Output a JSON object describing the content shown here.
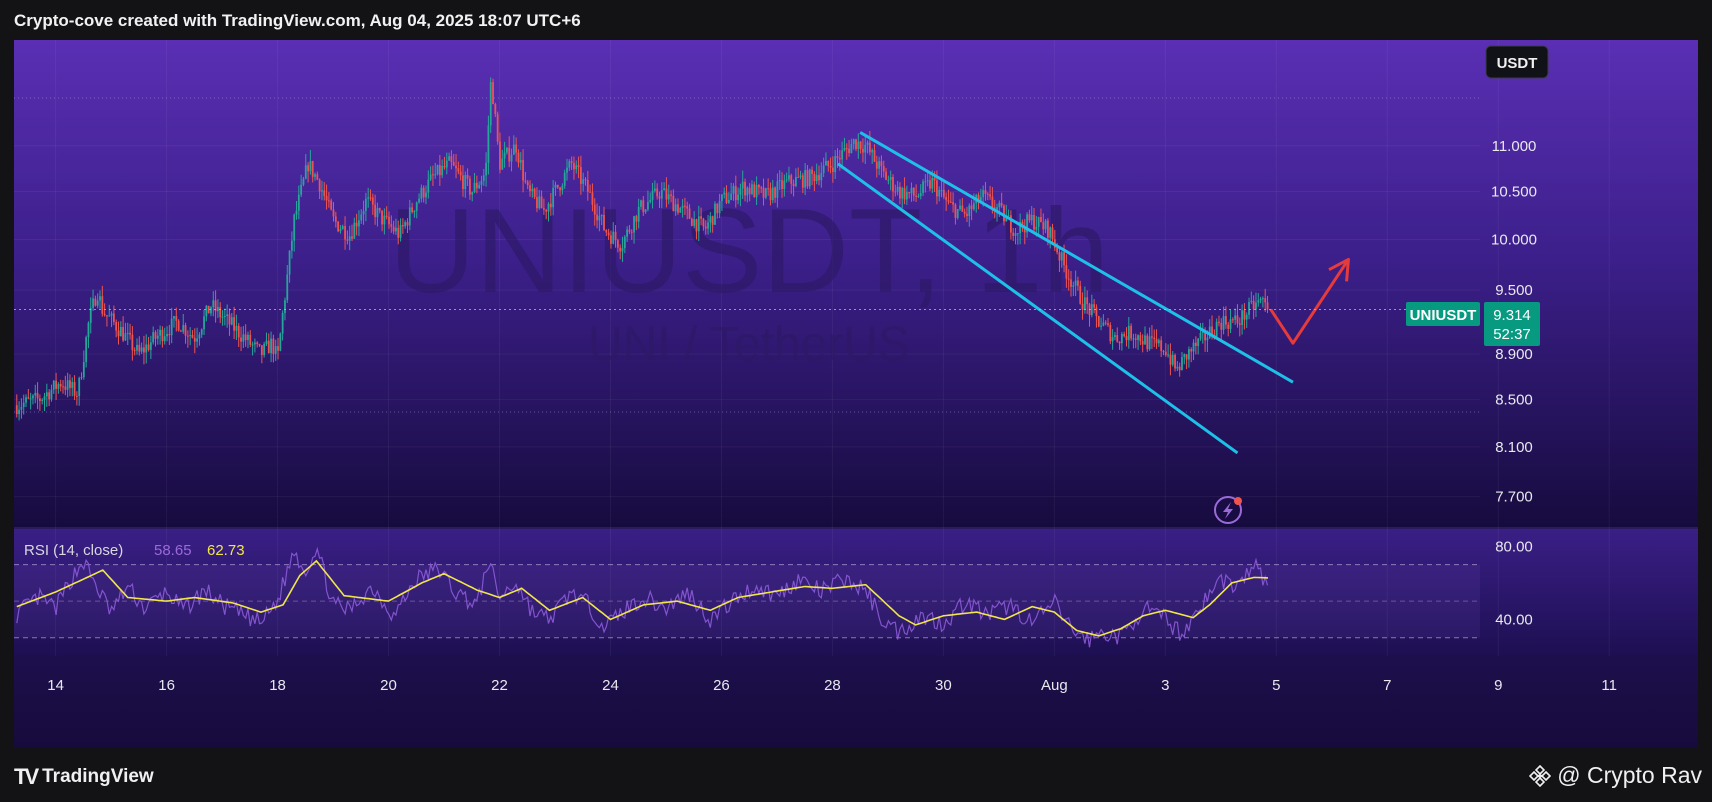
{
  "header": {
    "title": "Crypto-cove created with TradingView.com, Aug 04, 2025 18:07 UTC+6"
  },
  "footer": {
    "brand_logo": "TV",
    "brand_name": "TradingView",
    "watermark_handle": "@ Crypto Rav"
  },
  "colors": {
    "bg_top": "#5a2fb4",
    "bg_bottom": "#140a3a",
    "up_candle": "#26a69a",
    "down_candle": "#ef5350",
    "trendline": "#1ec0e8",
    "arrow": "#e53b3b",
    "rsi_line": "#8c5ad8",
    "rsi_ma": "#f0e64a",
    "price_badge": "#089981"
  },
  "chart_data": {
    "type": "candlestick",
    "symbol_watermark": "UNIUSDT, 1h",
    "subtitle_watermark": "UNI / TetherUS",
    "currency_label": "USDT",
    "y_ticks": [
      "11.000",
      "10.500",
      "10.000",
      "9.500",
      "8.900",
      "8.500",
      "8.100",
      "7.700"
    ],
    "y_scale": "log",
    "ylim": [
      7.55,
      12.1
    ],
    "x_ticks": [
      "14",
      "16",
      "18",
      "20",
      "22",
      "24",
      "26",
      "28",
      "30",
      "Aug",
      "3",
      "5",
      "7",
      "9",
      "11"
    ],
    "x_tick_days": [
      14,
      16,
      18,
      20,
      22,
      24,
      26,
      28,
      30,
      32,
      34,
      36,
      38,
      40,
      42
    ],
    "xlim_days": [
      13.25,
      43.6
    ],
    "last_price": {
      "label": "UNIUSDT",
      "value": "9.314",
      "countdown": "52:37"
    },
    "price_path": [
      [
        13.3,
        8.45
      ],
      [
        13.7,
        8.5
      ],
      [
        14.1,
        8.65
      ],
      [
        14.4,
        8.55
      ],
      [
        14.6,
        9.2
      ],
      [
        14.75,
        9.5
      ],
      [
        14.85,
        9.3
      ],
      [
        15.2,
        9.1
      ],
      [
        15.5,
        8.9
      ],
      [
        15.8,
        9.05
      ],
      [
        16.2,
        9.2
      ],
      [
        16.5,
        9.05
      ],
      [
        16.8,
        9.35
      ],
      [
        17.1,
        9.2
      ],
      [
        17.4,
        9.05
      ],
      [
        17.7,
        8.9
      ],
      [
        17.9,
        9.0
      ],
      [
        18.0,
        8.85
      ],
      [
        18.1,
        9.3
      ],
      [
        18.3,
        10.2
      ],
      [
        18.55,
        10.8
      ],
      [
        18.75,
        10.6
      ],
      [
        19.0,
        10.2
      ],
      [
        19.3,
        10.05
      ],
      [
        19.6,
        10.4
      ],
      [
        19.9,
        10.2
      ],
      [
        20.2,
        10.05
      ],
      [
        20.5,
        10.4
      ],
      [
        20.8,
        10.65
      ],
      [
        21.1,
        10.8
      ],
      [
        21.5,
        10.5
      ],
      [
        21.75,
        10.7
      ],
      [
        21.85,
        11.8
      ],
      [
        22.0,
        10.8
      ],
      [
        22.3,
        11.0
      ],
      [
        22.5,
        10.5
      ],
      [
        22.8,
        10.3
      ],
      [
        23.1,
        10.6
      ],
      [
        23.3,
        10.8
      ],
      [
        23.6,
        10.5
      ],
      [
        23.9,
        10.1
      ],
      [
        24.2,
        9.95
      ],
      [
        24.5,
        10.3
      ],
      [
        24.9,
        10.5
      ],
      [
        25.3,
        10.3
      ],
      [
        25.7,
        10.1
      ],
      [
        26.0,
        10.4
      ],
      [
        26.4,
        10.55
      ],
      [
        26.8,
        10.45
      ],
      [
        27.2,
        10.6
      ],
      [
        27.6,
        10.65
      ],
      [
        28.0,
        10.8
      ],
      [
        28.4,
        11.05
      ],
      [
        28.6,
        11.0
      ],
      [
        28.9,
        10.7
      ],
      [
        29.2,
        10.5
      ],
      [
        29.5,
        10.45
      ],
      [
        29.8,
        10.6
      ],
      [
        30.1,
        10.35
      ],
      [
        30.4,
        10.25
      ],
      [
        30.7,
        10.45
      ],
      [
        31.0,
        10.3
      ],
      [
        31.3,
        10.1
      ],
      [
        31.6,
        10.2
      ],
      [
        31.9,
        10.1
      ],
      [
        32.2,
        9.7
      ],
      [
        32.5,
        9.4
      ],
      [
        32.8,
        9.2
      ],
      [
        33.1,
        9.05
      ],
      [
        33.4,
        9.1
      ],
      [
        33.7,
        9.0
      ],
      [
        34.0,
        8.95
      ],
      [
        34.2,
        8.75
      ],
      [
        34.4,
        8.9
      ],
      [
        34.7,
        9.05
      ],
      [
        35.0,
        9.2
      ],
      [
        35.3,
        9.2
      ],
      [
        35.6,
        9.35
      ],
      [
        35.75,
        9.4
      ],
      [
        35.85,
        9.314
      ]
    ],
    "annotations": {
      "channel_upper": [
        [
          28.5,
          11.15
        ],
        [
          36.3,
          8.65
        ]
      ],
      "channel_lower": [
        [
          28.1,
          10.8
        ],
        [
          35.3,
          8.05
        ]
      ],
      "projection_arrow": [
        [
          35.9,
          9.314
        ],
        [
          36.3,
          9.0
        ],
        [
          37.3,
          9.8
        ]
      ]
    },
    "rsi": {
      "label": "RSI (14, close)",
      "value": "58.65",
      "ma_value": "62.73",
      "y_ticks": [
        "80.00",
        "40.00"
      ],
      "tick_values": [
        80,
        40
      ],
      "bands": [
        70,
        50,
        30
      ],
      "ylim": [
        20,
        90
      ],
      "ma_path": [
        [
          13.3,
          47
        ],
        [
          14.0,
          55
        ],
        [
          14.5,
          62
        ],
        [
          14.85,
          67
        ],
        [
          15.3,
          52
        ],
        [
          16.0,
          50
        ],
        [
          16.5,
          52
        ],
        [
          17.2,
          49
        ],
        [
          17.7,
          44
        ],
        [
          18.1,
          48
        ],
        [
          18.4,
          64
        ],
        [
          18.7,
          72
        ],
        [
          19.2,
          53
        ],
        [
          20.0,
          50
        ],
        [
          20.6,
          60
        ],
        [
          21.0,
          65
        ],
        [
          21.6,
          56
        ],
        [
          22.0,
          52
        ],
        [
          22.4,
          57
        ],
        [
          22.9,
          45
        ],
        [
          23.5,
          52
        ],
        [
          24.0,
          40
        ],
        [
          24.6,
          48
        ],
        [
          25.2,
          50
        ],
        [
          25.8,
          45
        ],
        [
          26.3,
          52
        ],
        [
          26.9,
          55
        ],
        [
          27.5,
          58
        ],
        [
          28.0,
          57
        ],
        [
          28.6,
          59
        ],
        [
          29.2,
          42
        ],
        [
          29.5,
          37
        ],
        [
          30.0,
          42
        ],
        [
          30.6,
          44
        ],
        [
          31.1,
          40
        ],
        [
          31.6,
          47
        ],
        [
          32.0,
          44
        ],
        [
          32.4,
          34
        ],
        [
          32.8,
          31
        ],
        [
          33.2,
          35
        ],
        [
          33.6,
          42
        ],
        [
          34.0,
          45
        ],
        [
          34.5,
          41
        ],
        [
          34.8,
          48
        ],
        [
          35.2,
          60
        ],
        [
          35.6,
          63
        ],
        [
          35.85,
          62.73
        ]
      ],
      "rsi_path": [
        [
          13.3,
          43
        ],
        [
          13.7,
          52
        ],
        [
          14.0,
          46
        ],
        [
          14.3,
          63
        ],
        [
          14.5,
          72
        ],
        [
          14.7,
          60
        ],
        [
          15.0,
          44
        ],
        [
          15.3,
          58
        ],
        [
          15.6,
          46
        ],
        [
          16.0,
          55
        ],
        [
          16.3,
          45
        ],
        [
          16.7,
          56
        ],
        [
          17.0,
          48
        ],
        [
          17.4,
          42
        ],
        [
          17.7,
          38
        ],
        [
          18.0,
          50
        ],
        [
          18.3,
          78
        ],
        [
          18.5,
          66
        ],
        [
          18.7,
          80
        ],
        [
          19.0,
          48
        ],
        [
          19.3,
          45
        ],
        [
          19.7,
          58
        ],
        [
          20.1,
          42
        ],
        [
          20.5,
          62
        ],
        [
          20.9,
          68
        ],
        [
          21.2,
          55
        ],
        [
          21.6,
          48
        ],
        [
          21.8,
          72
        ],
        [
          22.0,
          52
        ],
        [
          22.3,
          60
        ],
        [
          22.6,
          44
        ],
        [
          22.9,
          40
        ],
        [
          23.3,
          55
        ],
        [
          23.6,
          48
        ],
        [
          23.9,
          36
        ],
        [
          24.2,
          44
        ],
        [
          24.6,
          52
        ],
        [
          25.0,
          46
        ],
        [
          25.4,
          55
        ],
        [
          25.8,
          40
        ],
        [
          26.2,
          50
        ],
        [
          26.6,
          58
        ],
        [
          27.0,
          53
        ],
        [
          27.4,
          62
        ],
        [
          27.8,
          55
        ],
        [
          28.2,
          62
        ],
        [
          28.6,
          56
        ],
        [
          28.9,
          40
        ],
        [
          29.2,
          33
        ],
        [
          29.6,
          42
        ],
        [
          30.0,
          38
        ],
        [
          30.4,
          50
        ],
        [
          30.8,
          42
        ],
        [
          31.2,
          48
        ],
        [
          31.6,
          38
        ],
        [
          32.0,
          49
        ],
        [
          32.3,
          35
        ],
        [
          32.6,
          29
        ],
        [
          32.9,
          33
        ],
        [
          33.2,
          30
        ],
        [
          33.6,
          46
        ],
        [
          34.0,
          40
        ],
        [
          34.3,
          32
        ],
        [
          34.6,
          46
        ],
        [
          35.0,
          62
        ],
        [
          35.3,
          58
        ],
        [
          35.6,
          70
        ],
        [
          35.85,
          58.65
        ]
      ]
    }
  }
}
